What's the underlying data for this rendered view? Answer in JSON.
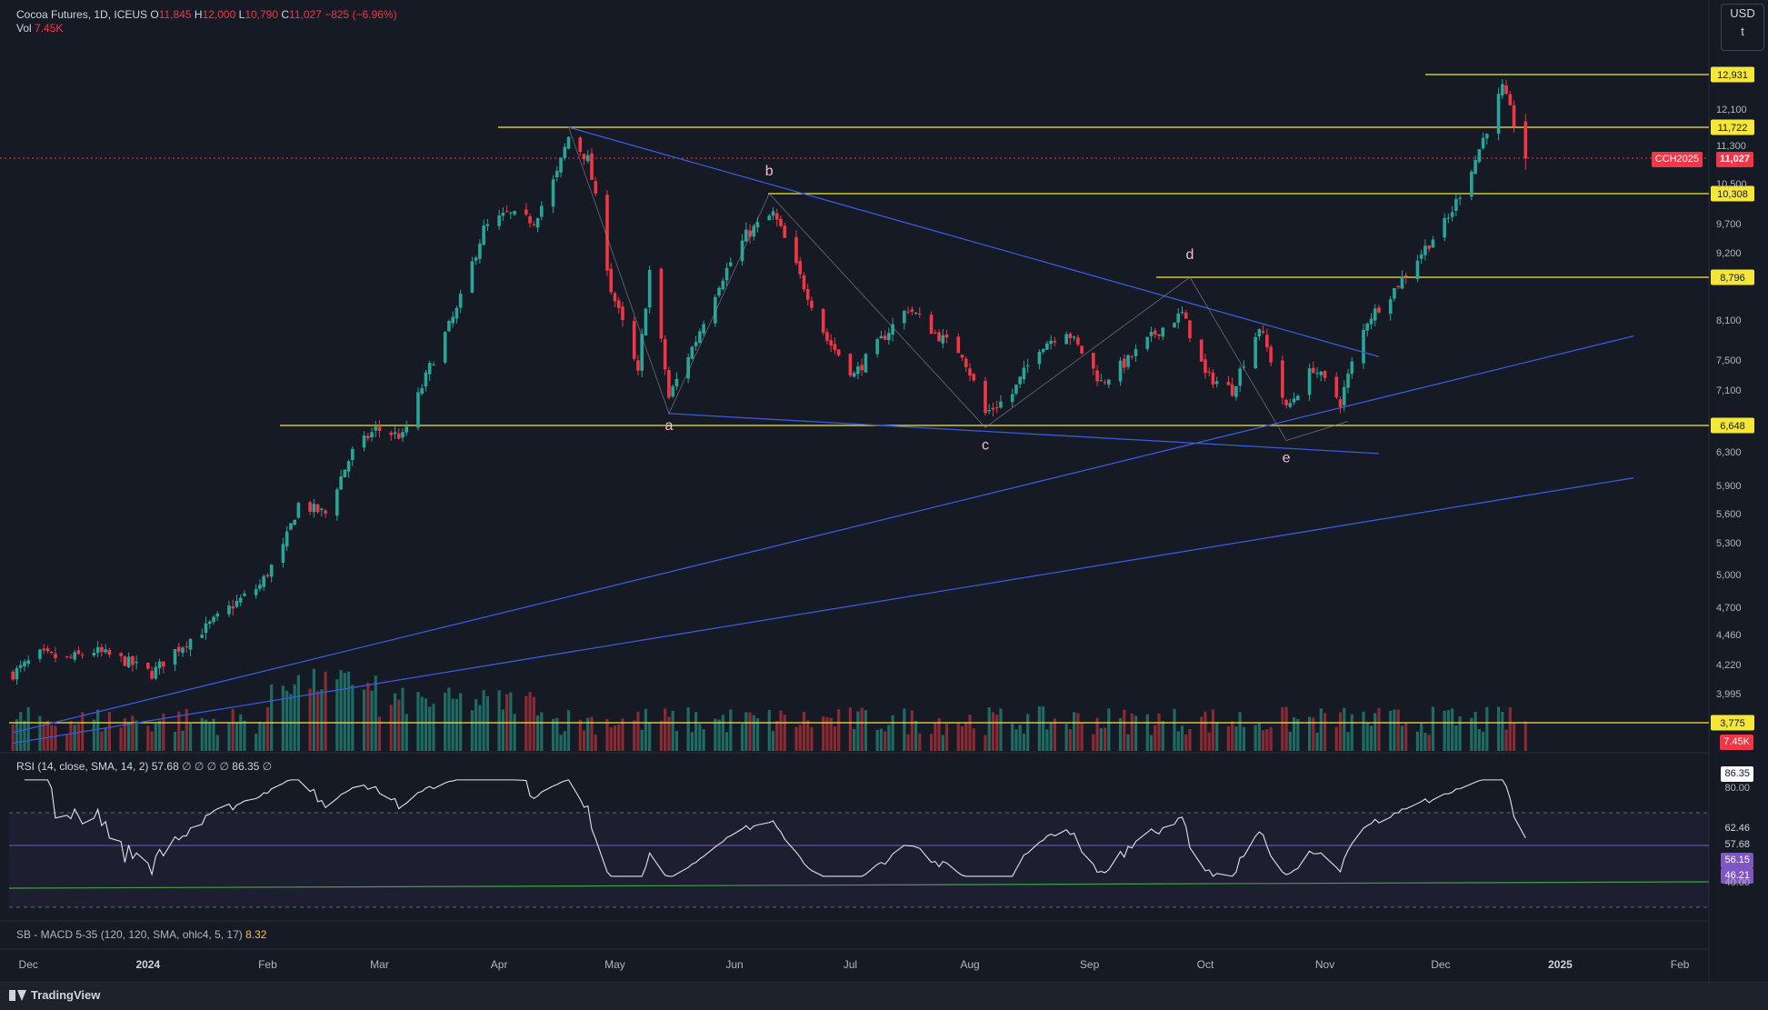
{
  "header": {
    "symbol": "Cocoa Futures, 1D, ICEUS",
    "o_label": "O",
    "o_value": "11,845",
    "h_label": "H",
    "h_value": "12,000",
    "l_label": "L",
    "l_value": "10,790",
    "c_label": "C",
    "c_value": "11,027",
    "change": "−825 (−6.96%)",
    "vol_label": "Vol",
    "vol_value": "7.45K"
  },
  "currency": {
    "line1": "USD",
    "line2": "t"
  },
  "price_tag": {
    "symbol": "CCH2025",
    "value": "11,027"
  },
  "volume_tag": "7.45K",
  "rsi": {
    "legend": "RSI (14, close, SMA, 14, 2)",
    "value": "57.68",
    "placeholders": "∅ ∅ ∅ ∅",
    "value2": "86.35",
    "placeholder2": "∅",
    "tags": [
      "86.35",
      "80.00",
      "62.46",
      "57.68",
      "56.15",
      "46.21",
      "40.00"
    ]
  },
  "macd": {
    "legend": "SB - MACD 5-35 (120, 120, SMA, ohlc4, 5, 17)",
    "value": "8.32"
  },
  "footer": {
    "brand": "TradingView"
  },
  "colors": {
    "up": "#26a69a",
    "down": "#f23645",
    "level": "#f5e63a",
    "trend": "#3a5bd9",
    "wedge": "#d1d4dc"
  },
  "chart_data": {
    "type": "candlestick",
    "instrument": "Cocoa Futures, 1D, ICEUS",
    "x_labels": [
      "Dec",
      "2024",
      "Feb",
      "Mar",
      "Apr",
      "May",
      "Jun",
      "Jul",
      "Aug",
      "Sep",
      "Oct",
      "Nov",
      "Dec",
      "2025",
      "Feb"
    ],
    "y_labels": [
      "12,100",
      "11,300",
      "10,500",
      "9,700",
      "9,200",
      "8,100",
      "7,500",
      "7,100",
      "6,300",
      "5,900",
      "5,600",
      "5,300",
      "5,000",
      "4,700",
      "4,460",
      "4,220",
      "3,995"
    ],
    "horizontal_levels": [
      "12,931",
      "11,722",
      "10,308",
      "8,796",
      "6,648",
      "3,775"
    ],
    "wave_labels": [
      "a",
      "b",
      "c",
      "d",
      "e"
    ],
    "pivots": [
      {
        "label": "a",
        "date": "2024-05-15",
        "price": 6800
      },
      {
        "label": "b",
        "date": "2024-06-10",
        "price": 10308
      },
      {
        "label": "c",
        "date": "2024-08-05",
        "price": 6620
      },
      {
        "label": "d",
        "date": "2024-09-27",
        "price": 8796
      },
      {
        "label": "e",
        "date": "2024-10-22",
        "price": 6450
      }
    ],
    "anchors": [
      [
        "2023-11-27",
        4150
      ],
      [
        "2023-12-04",
        4300
      ],
      [
        "2023-12-11",
        4260
      ],
      [
        "2023-12-18",
        4330
      ],
      [
        "2023-12-26",
        4250
      ],
      [
        "2024-01-02",
        4150
      ],
      [
        "2024-01-08",
        4330
      ],
      [
        "2024-01-16",
        4520
      ],
      [
        "2024-01-23",
        4720
      ],
      [
        "2024-01-30",
        4900
      ],
      [
        "2024-02-05",
        5250
      ],
      [
        "2024-02-09",
        5700
      ],
      [
        "2024-02-16",
        5600
      ],
      [
        "2024-02-23",
        6300
      ],
      [
        "2024-02-29",
        6600
      ],
      [
        "2024-03-07",
        6500
      ],
      [
        "2024-03-14",
        7400
      ],
      [
        "2024-03-21",
        8250
      ],
      [
        "2024-03-28",
        9600
      ],
      [
        "2024-04-03",
        9900
      ],
      [
        "2024-04-10",
        9750
      ],
      [
        "2024-04-16",
        10700
      ],
      [
        "2024-04-19",
        11500
      ],
      [
        "2024-04-24",
        11000
      ],
      [
        "2024-04-30",
        8600
      ],
      [
        "2024-05-07",
        7300
      ],
      [
        "2024-05-10",
        8900
      ],
      [
        "2024-05-15",
        7000
      ],
      [
        "2024-05-22",
        7800
      ],
      [
        "2024-05-28",
        8700
      ],
      [
        "2024-06-04",
        9500
      ],
      [
        "2024-06-11",
        9900
      ],
      [
        "2024-06-18",
        8800
      ],
      [
        "2024-06-25",
        7800
      ],
      [
        "2024-07-02",
        7300
      ],
      [
        "2024-07-09",
        7800
      ],
      [
        "2024-07-16",
        8300
      ],
      [
        "2024-07-23",
        7900
      ],
      [
        "2024-07-30",
        7600
      ],
      [
        "2024-08-05",
        6800
      ],
      [
        "2024-08-12",
        7050
      ],
      [
        "2024-08-19",
        7700
      ],
      [
        "2024-08-26",
        7950
      ],
      [
        "2024-09-04",
        7200
      ],
      [
        "2024-09-11",
        7500
      ],
      [
        "2024-09-18",
        7900
      ],
      [
        "2024-09-25",
        8200
      ],
      [
        "2024-10-01",
        7300
      ],
      [
        "2024-10-08",
        7100
      ],
      [
        "2024-10-15",
        8000
      ],
      [
        "2024-10-22",
        6850
      ],
      [
        "2024-10-29",
        7400
      ],
      [
        "2024-11-05",
        6950
      ],
      [
        "2024-11-12",
        8100
      ],
      [
        "2024-11-19",
        8600
      ],
      [
        "2024-11-26",
        9200
      ],
      [
        "2024-12-03",
        9800
      ],
      [
        "2024-12-10",
        11000
      ],
      [
        "2024-12-17",
        12600
      ],
      [
        "2024-12-20",
        11800
      ],
      [
        "2024-12-23",
        11027
      ]
    ]
  }
}
